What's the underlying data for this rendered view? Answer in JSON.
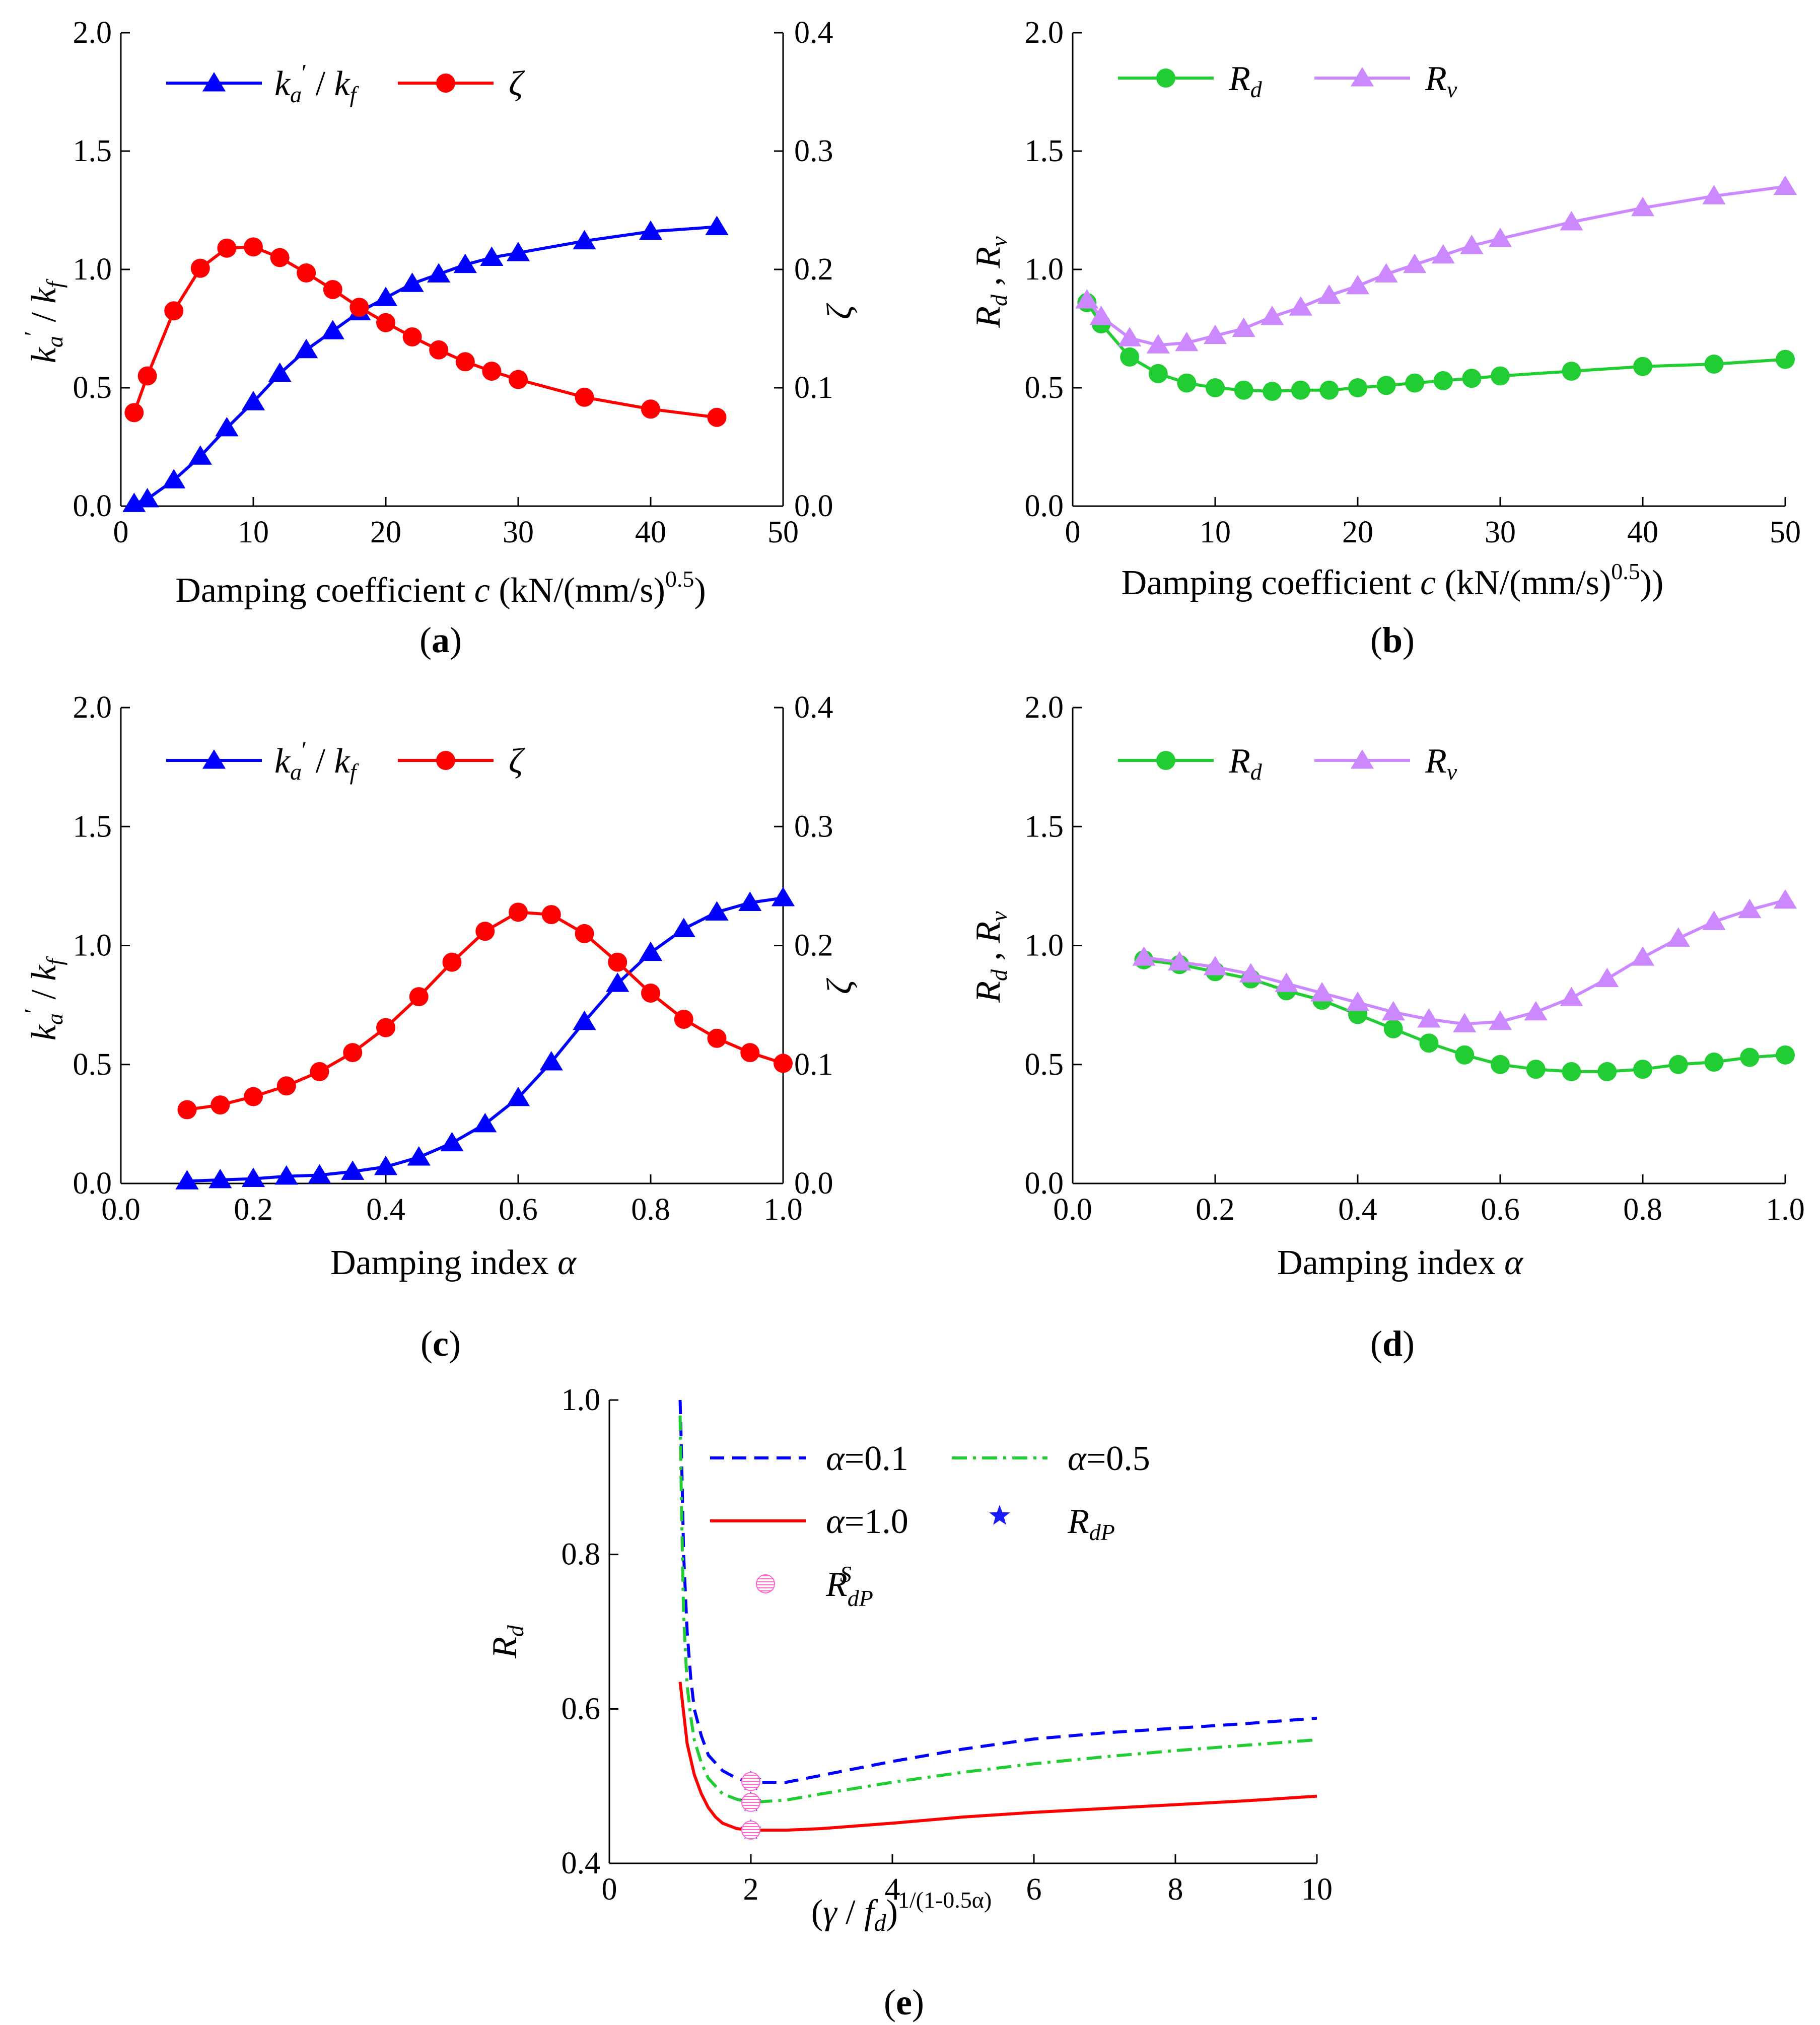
{
  "figure": {
    "panels": [
      {
        "id": "a",
        "caption": "(a)",
        "type": "line",
        "x_label": "Damping coefficient  c (kN/(mm/s)^0.5)",
        "x_label_parts": {
          "main": "Damping coefficient ",
          "var": "c",
          "unit": " (kN/(mm/s)",
          "sup": "0.5",
          "tail": ")"
        },
        "y_label": "k'a / kf",
        "y2_label": "ζ",
        "xlim": [
          0,
          50
        ],
        "xticks": [
          "0",
          "10",
          "20",
          "30",
          "40",
          "50"
        ],
        "ylim": [
          0,
          2.0
        ],
        "yticks": [
          "0.0",
          "0.5",
          "1.0",
          "1.5",
          "2.0"
        ],
        "y2lim": [
          0,
          0.4
        ],
        "y2ticks": [
          "0.0",
          "0.1",
          "0.2",
          "0.3",
          "0.4"
        ],
        "legend": [
          "k'a / kf",
          "ζ"
        ]
      },
      {
        "id": "b",
        "caption": "(b)",
        "type": "line",
        "x_label": "Damping coefficient  c (kN/(mm/s)^0.5))",
        "x_label_parts": {
          "main": "Damping coefficient ",
          "var": "c",
          "unit": " (kN/(mm/s)",
          "sup": "0.5",
          "tail": "))"
        },
        "y_label": "Rd , Rv",
        "xlim": [
          0,
          50
        ],
        "xticks": [
          "0",
          "10",
          "20",
          "30",
          "40",
          "50"
        ],
        "ylim": [
          0,
          2.0
        ],
        "yticks": [
          "0.0",
          "0.5",
          "1.0",
          "1.5",
          "2.0"
        ],
        "legend": [
          "Rd",
          "Rv"
        ]
      },
      {
        "id": "c",
        "caption": "(c)",
        "type": "line",
        "x_label": "Damping index  α",
        "y_label": "k'a / kf",
        "y2_label": "ζ",
        "xlim": [
          0,
          1.0
        ],
        "xticks": [
          "0.0",
          "0.2",
          "0.4",
          "0.6",
          "0.8",
          "1.0"
        ],
        "ylim": [
          0,
          2.0
        ],
        "yticks": [
          "0.0",
          "0.5",
          "1.0",
          "1.5",
          "2.0"
        ],
        "y2lim": [
          0,
          0.4
        ],
        "y2ticks": [
          "0.0",
          "0.1",
          "0.2",
          "0.3",
          "0.4"
        ],
        "legend": [
          "k'a / kf",
          "ζ"
        ]
      },
      {
        "id": "d",
        "caption": "(d)",
        "type": "line",
        "x_label": "Damping index  α",
        "y_label": "Rd , Rv",
        "xlim": [
          0,
          1.0
        ],
        "xticks": [
          "0.0",
          "0.2",
          "0.4",
          "0.6",
          "0.8",
          "1.0"
        ],
        "ylim": [
          0,
          2.0
        ],
        "yticks": [
          "0.0",
          "0.5",
          "1.0",
          "1.5",
          "2.0"
        ],
        "legend": [
          "Rd",
          "Rv"
        ]
      },
      {
        "id": "e",
        "caption": "(e)",
        "type": "line",
        "x_label": "(γ / fd)^1/(1-0.5α)",
        "y_label": "Rd",
        "xlim": [
          0,
          10
        ],
        "xticks": [
          "0",
          "2",
          "4",
          "6",
          "8",
          "10"
        ],
        "ylim": [
          0.4,
          1.0
        ],
        "yticks": [
          "0.4",
          "0.6",
          "0.8",
          "1.0"
        ],
        "legend": [
          "α=0.1",
          "α=0.5",
          "α=1.0",
          "RdP",
          "RSdP"
        ]
      }
    ],
    "colors": {
      "blue": "#0000ff",
      "red": "#ff0000",
      "green": "#22cc33",
      "violet": "#cc88ff",
      "pink": "#ff66cc",
      "star": "#1a1aff"
    }
  },
  "chart_data": [
    {
      "type": "line",
      "panel": "a",
      "xlabel": "Damping coefficient c (kN/(mm/s)^0.5)",
      "ylabel": "k'a / kf",
      "y2label": "ζ",
      "xlim": [
        0,
        50
      ],
      "ylim": [
        0,
        2.0
      ],
      "y2lim": [
        0,
        0.4
      ],
      "series": [
        {
          "name": "k'a / kf",
          "axis": "left",
          "marker": "triangle",
          "color": "#0000ff",
          "x": [
            1,
            2,
            4,
            6,
            8,
            10,
            12,
            14,
            16,
            18,
            20,
            22,
            24,
            26,
            28,
            30,
            35,
            40,
            45
          ],
          "y": [
            0.01,
            0.03,
            0.11,
            0.21,
            0.33,
            0.44,
            0.56,
            0.66,
            0.74,
            0.82,
            0.88,
            0.94,
            0.98,
            1.02,
            1.05,
            1.07,
            1.12,
            1.16,
            1.18
          ]
        },
        {
          "name": "ζ",
          "axis": "right",
          "marker": "circle",
          "color": "#ff0000",
          "x": [
            1,
            2,
            4,
            6,
            8,
            10,
            12,
            14,
            16,
            18,
            20,
            22,
            24,
            26,
            28,
            30,
            35,
            40,
            45
          ],
          "y": [
            0.079,
            0.11,
            0.165,
            0.201,
            0.218,
            0.219,
            0.21,
            0.197,
            0.183,
            0.168,
            0.155,
            0.143,
            0.132,
            0.122,
            0.114,
            0.107,
            0.092,
            0.082,
            0.075
          ]
        }
      ]
    },
    {
      "type": "line",
      "panel": "b",
      "xlabel": "Damping coefficient c (kN/(mm/s)^0.5))",
      "ylabel": "Rd , Rv",
      "xlim": [
        0,
        50
      ],
      "ylim": [
        0,
        2.0
      ],
      "series": [
        {
          "name": "Rd",
          "marker": "circle",
          "color": "#22cc33",
          "x": [
            1,
            2,
            4,
            6,
            8,
            10,
            12,
            14,
            16,
            18,
            20,
            22,
            24,
            26,
            28,
            30,
            35,
            40,
            45,
            50
          ],
          "y": [
            0.86,
            0.77,
            0.63,
            0.56,
            0.52,
            0.5,
            0.49,
            0.485,
            0.49,
            0.49,
            0.5,
            0.51,
            0.52,
            0.53,
            0.54,
            0.55,
            0.57,
            0.59,
            0.6,
            0.62
          ]
        },
        {
          "name": "Rv",
          "marker": "triangle",
          "color": "#cc88ff",
          "x": [
            1,
            2,
            4,
            6,
            8,
            10,
            12,
            14,
            16,
            18,
            20,
            22,
            24,
            26,
            28,
            30,
            35,
            40,
            45,
            50
          ],
          "y": [
            0.87,
            0.8,
            0.71,
            0.68,
            0.69,
            0.72,
            0.75,
            0.8,
            0.84,
            0.89,
            0.93,
            0.98,
            1.02,
            1.06,
            1.1,
            1.13,
            1.2,
            1.26,
            1.31,
            1.35
          ]
        }
      ]
    },
    {
      "type": "line",
      "panel": "c",
      "xlabel": "Damping index α",
      "ylabel": "k'a / kf",
      "y2label": "ζ",
      "xlim": [
        0,
        1.0
      ],
      "ylim": [
        0,
        2.0
      ],
      "y2lim": [
        0,
        0.4
      ],
      "series": [
        {
          "name": "k'a / kf",
          "axis": "left",
          "marker": "triangle",
          "color": "#0000ff",
          "x": [
            0.1,
            0.15,
            0.2,
            0.25,
            0.3,
            0.35,
            0.4,
            0.45,
            0.5,
            0.55,
            0.6,
            0.65,
            0.7,
            0.75,
            0.8,
            0.85,
            0.9,
            0.95,
            1.0
          ],
          "y": [
            0.01,
            0.015,
            0.02,
            0.03,
            0.035,
            0.05,
            0.07,
            0.11,
            0.17,
            0.25,
            0.36,
            0.51,
            0.68,
            0.84,
            0.97,
            1.07,
            1.14,
            1.18,
            1.2
          ]
        },
        {
          "name": "ζ",
          "axis": "right",
          "marker": "circle",
          "color": "#ff0000",
          "x": [
            0.1,
            0.15,
            0.2,
            0.25,
            0.3,
            0.35,
            0.4,
            0.45,
            0.5,
            0.55,
            0.6,
            0.65,
            0.7,
            0.75,
            0.8,
            0.85,
            0.9,
            0.95,
            1.0
          ],
          "y": [
            0.062,
            0.066,
            0.073,
            0.082,
            0.094,
            0.11,
            0.131,
            0.157,
            0.186,
            0.212,
            0.228,
            0.226,
            0.21,
            0.186,
            0.16,
            0.138,
            0.122,
            0.11,
            0.101
          ]
        }
      ]
    },
    {
      "type": "line",
      "panel": "d",
      "xlabel": "Damping index α",
      "ylabel": "Rd , Rv",
      "xlim": [
        0,
        1.0
      ],
      "ylim": [
        0,
        2.0
      ],
      "series": [
        {
          "name": "Rd",
          "marker": "circle",
          "color": "#22cc33",
          "x": [
            0.1,
            0.15,
            0.2,
            0.25,
            0.3,
            0.35,
            0.4,
            0.45,
            0.5,
            0.55,
            0.6,
            0.65,
            0.7,
            0.75,
            0.8,
            0.85,
            0.9,
            0.95,
            1.0
          ],
          "y": [
            0.94,
            0.92,
            0.89,
            0.86,
            0.81,
            0.77,
            0.71,
            0.65,
            0.59,
            0.54,
            0.5,
            0.48,
            0.47,
            0.47,
            0.48,
            0.5,
            0.51,
            0.53,
            0.54
          ]
        },
        {
          "name": "Rv",
          "marker": "triangle",
          "color": "#cc88ff",
          "x": [
            0.1,
            0.15,
            0.2,
            0.25,
            0.3,
            0.35,
            0.4,
            0.45,
            0.5,
            0.55,
            0.6,
            0.65,
            0.7,
            0.75,
            0.8,
            0.85,
            0.9,
            0.95,
            1.0
          ],
          "y": [
            0.95,
            0.93,
            0.91,
            0.88,
            0.84,
            0.8,
            0.76,
            0.72,
            0.69,
            0.67,
            0.68,
            0.72,
            0.78,
            0.86,
            0.95,
            1.03,
            1.1,
            1.15,
            1.19
          ]
        }
      ]
    },
    {
      "type": "line",
      "panel": "e",
      "xlabel": "(γ / fd)^1/(1-0.5α)",
      "ylabel": "Rd",
      "xlim": [
        0,
        10
      ],
      "ylim": [
        0.4,
        1.0
      ],
      "series": [
        {
          "name": "α=0.1",
          "style": "dashed",
          "color": "#0000ff",
          "x": [
            1.0,
            1.02,
            1.05,
            1.1,
            1.15,
            1.2,
            1.3,
            1.4,
            1.6,
            1.8,
            2.0,
            2.5,
            3,
            4,
            5,
            6,
            7,
            8,
            9,
            10
          ],
          "y": [
            1.0,
            0.93,
            0.8,
            0.7,
            0.64,
            0.6,
            0.565,
            0.54,
            0.52,
            0.51,
            0.505,
            0.505,
            0.514,
            0.532,
            0.548,
            0.561,
            0.569,
            0.575,
            0.581,
            0.588
          ]
        },
        {
          "name": "α=0.5",
          "style": "dashdot",
          "color": "#22cc33",
          "x": [
            1.0,
            1.02,
            1.05,
            1.1,
            1.15,
            1.2,
            1.3,
            1.4,
            1.6,
            1.8,
            2.0,
            2.5,
            3,
            4,
            5,
            6,
            7,
            8,
            9,
            10
          ],
          "y": [
            0.98,
            0.86,
            0.72,
            0.63,
            0.59,
            0.56,
            0.53,
            0.51,
            0.49,
            0.483,
            0.479,
            0.482,
            0.49,
            0.505,
            0.518,
            0.529,
            0.538,
            0.546,
            0.553,
            0.56
          ]
        },
        {
          "name": "α=1.0",
          "style": "solid",
          "color": "#ff0000",
          "x": [
            1.0,
            1.1,
            1.2,
            1.3,
            1.4,
            1.5,
            1.6,
            1.8,
            2.0,
            2.5,
            3,
            4,
            5,
            6,
            7,
            8,
            9,
            10
          ],
          "y": [
            0.635,
            0.555,
            0.515,
            0.49,
            0.472,
            0.46,
            0.452,
            0.445,
            0.443,
            0.443,
            0.445,
            0.452,
            0.46,
            0.466,
            0.471,
            0.476,
            0.481,
            0.487
          ]
        },
        {
          "name": "RdP",
          "marker": "star",
          "color": "#1a1aff",
          "x": [
            2.0,
            2.0,
            2.0
          ],
          "y": [
            0.506,
            0.479,
            0.443
          ]
        },
        {
          "name": "RSdP",
          "marker": "hatched-circle",
          "color": "#ff66cc",
          "x": [
            2.0,
            2.0,
            2.0
          ],
          "y": [
            0.506,
            0.479,
            0.443
          ]
        }
      ]
    }
  ]
}
